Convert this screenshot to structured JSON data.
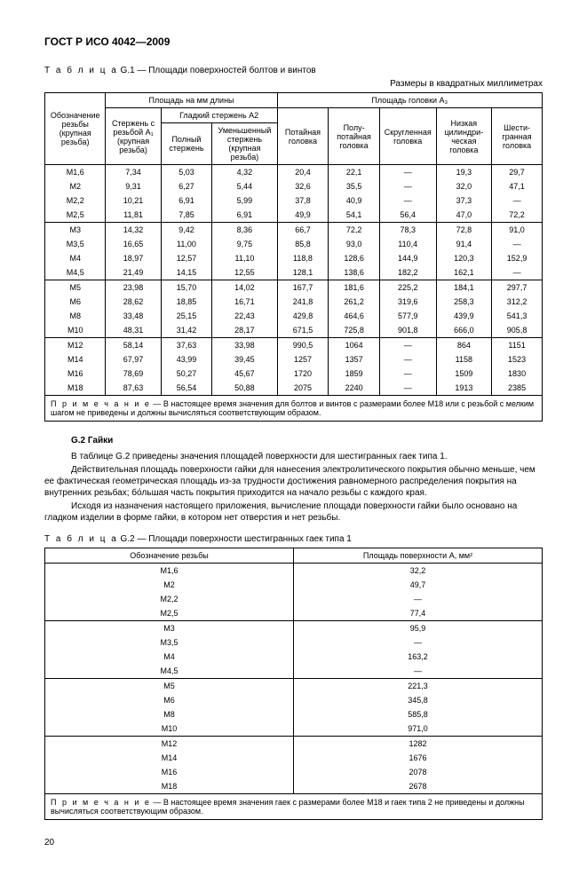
{
  "header": "ГОСТ Р ИСО 4042—2009",
  "table1": {
    "caption_prefix": "Т а б л и ц а",
    "caption": " G.1 — Площади поверхностей болтов и винтов",
    "units": "Размеры в квадратных миллиметрах",
    "headers": {
      "col1": "Обозначение резьбы (крупная резьба)",
      "group_len": "Площадь на мм длины",
      "group_head": "Площадь головки A₃",
      "sub1": "Стержень с резьбой A₁ (крупная резьба)",
      "sub2_group": "Гладкий стержень A2",
      "sub2a": "Полный стержень",
      "sub2b": "Уменьшенный стержень (крупная резьба)",
      "h1": "Потайная головка",
      "h2": "Полу-потайная головка",
      "h3": "Скругленная головка",
      "h4": "Низкая цилиндри-ческая головка",
      "h5": "Шести-гранная головка"
    },
    "groups": [
      [
        [
          "M1,6",
          "7,34",
          "5,03",
          "4,32",
          "20,4",
          "22,1",
          "—",
          "19,3",
          "29,7"
        ],
        [
          "M2",
          "9,31",
          "6,27",
          "5,44",
          "32,6",
          "35,5",
          "—",
          "32,0",
          "47,1"
        ],
        [
          "M2,2",
          "10,21",
          "6,91",
          "5,99",
          "37,8",
          "40,9",
          "—",
          "37,3",
          "—"
        ],
        [
          "M2,5",
          "11,81",
          "7,85",
          "6,91",
          "49,9",
          "54,1",
          "56,4",
          "47,0",
          "72,2"
        ]
      ],
      [
        [
          "M3",
          "14,32",
          "9,42",
          "8,36",
          "66,7",
          "72,2",
          "78,3",
          "72,8",
          "91,0"
        ],
        [
          "M3,5",
          "16,65",
          "11,00",
          "9,75",
          "85,8",
          "93,0",
          "110,4",
          "91,4",
          "—"
        ],
        [
          "M4",
          "18,97",
          "12,57",
          "11,10",
          "118,8",
          "128,6",
          "144,9",
          "120,3",
          "152,9"
        ],
        [
          "M4,5",
          "21,49",
          "14,15",
          "12,55",
          "128,1",
          "138,6",
          "182,2",
          "162,1",
          "—"
        ]
      ],
      [
        [
          "M5",
          "23,98",
          "15,70",
          "14,02",
          "167,7",
          "181,6",
          "225,2",
          "184,1",
          "297,7"
        ],
        [
          "M6",
          "28,62",
          "18,85",
          "16,71",
          "241,8",
          "261,2",
          "319,6",
          "258,3",
          "312,2"
        ],
        [
          "M8",
          "33,48",
          "25,15",
          "22,43",
          "429,8",
          "464,6",
          "577,9",
          "439,9",
          "541,3"
        ],
        [
          "M10",
          "48,31",
          "31,42",
          "28,17",
          "671,5",
          "725,8",
          "901,8",
          "666,0",
          "905,8"
        ]
      ],
      [
        [
          "M12",
          "58,14",
          "37,63",
          "33,98",
          "990,5",
          "1064",
          "—",
          "864",
          "1151"
        ],
        [
          "M14",
          "67,97",
          "43,99",
          "39,45",
          "1257",
          "1357",
          "—",
          "1158",
          "1523"
        ],
        [
          "M16",
          "78,69",
          "50,27",
          "45,67",
          "1720",
          "1859",
          "—",
          "1509",
          "1830"
        ],
        [
          "M18",
          "87,63",
          "56,54",
          "50,88",
          "2075",
          "2240",
          "—",
          "1913",
          "2385"
        ]
      ]
    ],
    "note_label": "П р и м е ч а н и е",
    "note": " — В настоящее время значения для болтов и винтов с размерами более M18 или с резьбой с мелким шагом не приведены и должны вычисляться соответствующим образом."
  },
  "sectionG2": {
    "title": "G.2  Гайки",
    "p1": "В таблице G.2 приведены значения площадей поверхности для шестигранных гаек типа 1.",
    "p2": "Действительная площадь поверхности гайки для нанесения электролитического покрытия обычно меньше, чем ее фактическая геометрическая площадь из-за трудности достижения равномерного распределения покрытия на внутренних резьбах; бо́льшая часть покрытия приходится на начало резьбы с каждого края.",
    "p3": "Исходя из назначения настоящего приложения, вычисление площади поверхности гайки было основано на гладком изделии в форме гайки, в котором нет отверстия и нет резьбы."
  },
  "table2": {
    "caption_prefix": "Т а б л и ц а",
    "caption": " G.2 — Площади поверхности шестигранных гаек типа 1",
    "headers": {
      "c1": "Обозначение резьбы",
      "c2": "Площадь поверхности A, мм²"
    },
    "groups": [
      [
        [
          "M1,6",
          "32,2"
        ],
        [
          "M2",
          "49,7"
        ],
        [
          "M2,2",
          "—"
        ],
        [
          "M2,5",
          "77,4"
        ]
      ],
      [
        [
          "M3",
          "95,9"
        ],
        [
          "M3,5",
          "—"
        ],
        [
          "M4",
          "163,2"
        ],
        [
          "M4,5",
          "—"
        ]
      ],
      [
        [
          "M5",
          "221,3"
        ],
        [
          "M6",
          "345,8"
        ],
        [
          "M8",
          "585,8"
        ],
        [
          "M10",
          "971,0"
        ]
      ],
      [
        [
          "M12",
          "1282"
        ],
        [
          "M14",
          "1676"
        ],
        [
          "M16",
          "2078"
        ],
        [
          "M18",
          "2678"
        ]
      ]
    ],
    "note_label": "П р и м е ч а н и е",
    "note": " — В настоящее время значения гаек с размерами более M18 и гаек типа 2 не приведены и должны вычисляться соответствующим образом."
  },
  "pageNumber": "20"
}
